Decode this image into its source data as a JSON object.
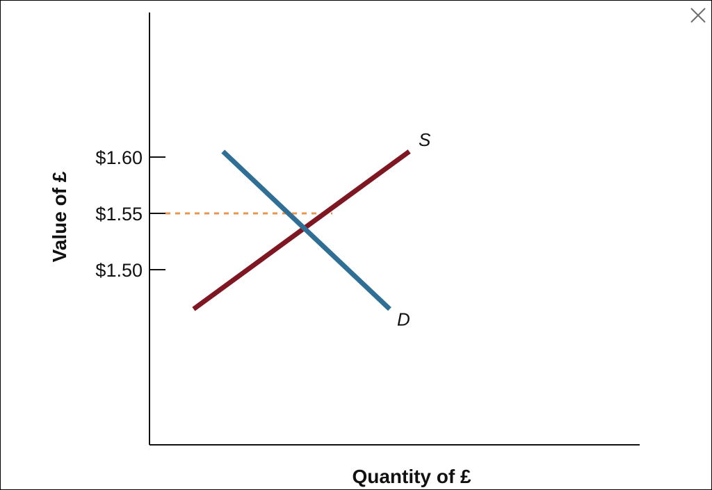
{
  "close_icon": "close-icon",
  "chart_data": {
    "type": "line",
    "xlabel": "Quantity of £",
    "ylabel": "Value of £",
    "yticks": [
      {
        "value": 1.6,
        "label": "$1.60"
      },
      {
        "value": 1.55,
        "label": "$1.55"
      },
      {
        "value": 1.5,
        "label": "$1.50"
      }
    ],
    "series": [
      {
        "name": "S",
        "color": "#7e1722",
        "points": [
          [
            0.09,
            1.465
          ],
          [
            0.53,
            1.605
          ]
        ]
      },
      {
        "name": "D",
        "color": "#2f6f96",
        "points": [
          [
            0.15,
            1.605
          ],
          [
            0.49,
            1.465
          ]
        ]
      }
    ],
    "equilibrium": {
      "y": 1.55,
      "color": "#e8964f",
      "style": "dashed"
    },
    "grid": false
  }
}
